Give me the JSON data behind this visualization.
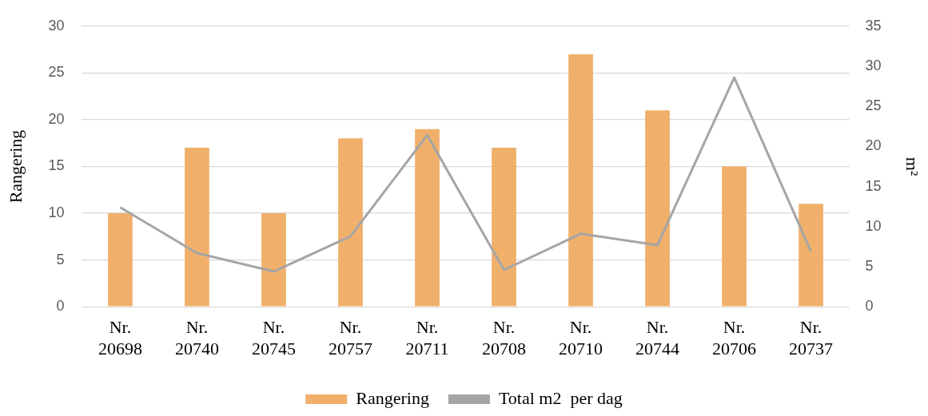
{
  "chart_data": {
    "type": "bar",
    "ylabel": "Rangering",
    "y2label": "m²",
    "categories": [
      "Nr. 20698",
      "Nr. 20740",
      "Nr. 20745",
      "Nr. 20757",
      "Nr. 20711",
      "Nr. 20708",
      "Nr. 20710",
      "Nr. 20744",
      "Nr. 20706",
      "Nr. 20737"
    ],
    "series": [
      {
        "name": "Rangering",
        "color": "#f0b06b",
        "values": [
          10,
          17,
          10,
          18,
          19,
          17,
          27,
          21,
          15,
          11
        ]
      },
      {
        "name": "Total m2  per dag",
        "type": "line",
        "axis": "y2",
        "color": "#a5a5a5",
        "values": [
          12.4,
          6.7,
          4.4,
          8.8,
          21.4,
          4.6,
          9.1,
          7.7,
          28.6,
          6.9
        ]
      }
    ],
    "ylim": [
      0,
      30
    ],
    "yticks": [
      0,
      5,
      10,
      15,
      20,
      25,
      30
    ],
    "y2lim": [
      0,
      35
    ],
    "y2ticks": [
      0,
      5,
      10,
      15,
      20,
      25,
      30,
      35
    ],
    "grid": "y",
    "legend": "bottom",
    "marker": "none",
    "line_style": "solid"
  }
}
